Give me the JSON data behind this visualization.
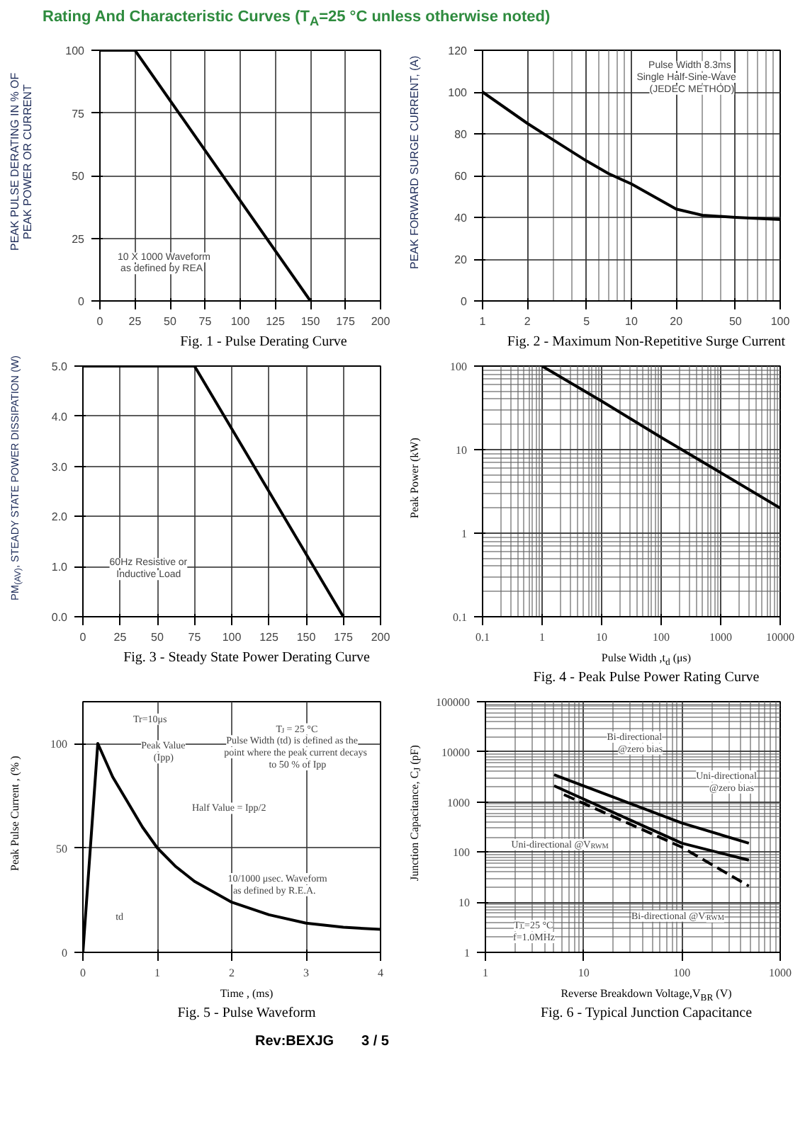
{
  "chart_data": [
    {
      "type": "line",
      "title": "Fig. 1 - Pulse Derating Curve",
      "ylabel": "PEAK PULSE DERATING IN % OF\nPEAK POWER OR CURRENT",
      "x": [
        0,
        25,
        150
      ],
      "values": [
        100,
        100,
        0
      ],
      "color": "#000000",
      "xlim": [
        0,
        200
      ],
      "xticks": [
        0,
        25,
        50,
        75,
        100,
        125,
        150,
        175,
        200
      ],
      "ylim": [
        0,
        100
      ],
      "yticks": [
        0,
        25,
        50,
        75,
        100
      ],
      "grid": true,
      "annotations": [
        "Rating And Characteristic Curves (T$_{A}$=25 °C unless otherwise noted)",
        "10 X 1000 Waveform\nas defined by REA"
      ]
    },
    {
      "type": "line",
      "title": "Fig. 2 - Maximum Non-Repetitive Surge Current",
      "ylabel": "PEAK FORWARD SURGE CURRENT, (A)",
      "x": [
        1,
        2,
        3,
        5,
        7,
        10,
        15,
        20,
        30,
        50,
        100
      ],
      "values": [
        100,
        85,
        77,
        67,
        61,
        56,
        49,
        44,
        41,
        40,
        39
      ],
      "color": "#000000",
      "xlim": [
        1,
        100
      ],
      "xticks": [
        1,
        2,
        5,
        10,
        20,
        50,
        100
      ],
      "ylim": [
        0,
        120
      ],
      "yticks": [
        0,
        20,
        40,
        60,
        80,
        100,
        120
      ],
      "log": "x",
      "grid": true,
      "annotations": [
        "Pulse Width 8.3ms\nSingle Half-Sine-Wave\n(JEDEC METHOD)"
      ]
    },
    {
      "type": "line",
      "title": "Fig. 3 - Steady State Power Derating Curve",
      "ylabel": "PM$_{(AV)}$, STEADY STATE POWER DISSIPATION (W)",
      "x": [
        0,
        75,
        175
      ],
      "values": [
        5,
        5,
        0
      ],
      "color": "#000000",
      "xlim": [
        0,
        200
      ],
      "xticks": [
        0,
        25,
        50,
        75,
        100,
        125,
        150,
        175,
        200
      ],
      "ylim": [
        0,
        5
      ],
      "yticks": [
        {
          "value": 0,
          "label": "0.0"
        },
        {
          "value": 1,
          "label": "1.0"
        },
        {
          "value": 2,
          "label": "2.0"
        },
        {
          "value": 3,
          "label": "3.0"
        },
        {
          "value": 4,
          "label": "4.0"
        },
        {
          "value": 5,
          "label": "5.0"
        }
      ],
      "grid": true,
      "annotations": [
        "60Hz Resistive or\nInductive Load"
      ]
    },
    {
      "type": "line",
      "title": "Fig. 4 - Peak Pulse Power Rating Curve",
      "xlabel": "Pulse Width ,t$_{d}$ (μs)",
      "ylabel": "Peak Power  (kW)",
      "x": [
        1,
        10,
        100,
        1000,
        10000
      ],
      "values": [
        100,
        38,
        14,
        5.3,
        2
      ],
      "color": "#000000",
      "xlim": [
        0.1,
        10000
      ],
      "xticks": [
        0.1,
        1,
        10,
        100,
        1000,
        10000
      ],
      "ylim": [
        0.1,
        100
      ],
      "yticks": [
        0.1,
        1,
        10,
        100
      ],
      "log": "xy",
      "grid": true
    },
    {
      "type": "line",
      "title": "Fig. 5 - Pulse Waveform",
      "xlabel": "Time , (ms)",
      "ylabel": "Peak Pulse Current , (% )",
      "x": [
        0,
        0.2,
        0.4,
        0.6,
        0.8,
        1.0,
        1.25,
        1.5,
        2,
        2.5,
        3,
        3.5,
        4
      ],
      "values": [
        0,
        100,
        84,
        72,
        60,
        50,
        41,
        34,
        24,
        18,
        14,
        12,
        11
      ],
      "color": "#000000",
      "xlim": [
        0,
        4
      ],
      "xticks": [
        0,
        1,
        2,
        3,
        4
      ],
      "ylim": [
        0,
        120
      ],
      "yticks": [
        0,
        50,
        100
      ],
      "grid": true,
      "annotations": [
        "Tr=10μs",
        "Peak Value\n(Ipp)",
        "T$_{J}$ = 25 °C\nPulse Width (td) is defined as the\npoint where the peak current decays\nto 50 % of Ipp",
        "Half Value = Ipp/2",
        "10/1000 μsec. Waveform\nas defined by R.E.A.",
        "td"
      ]
    },
    {
      "type": "line",
      "title": "Fig. 6 - Typical Junction Capacitance",
      "xlabel": "Reverse  Breakdown Voltage,V$_{BR}$ (V)",
      "ylabel": "Junction Capacitance, C$_{J}$ (pF)",
      "series": [
        {
          "x": [
            5,
            100,
            480
          ],
          "values": [
            3500,
            380,
            150
          ],
          "color": "#000000"
        },
        {
          "x": [
            5,
            100,
            480
          ],
          "values": [
            2100,
            150,
            69
          ],
          "color": "#000000"
        },
        {
          "x": [
            6.3,
            100,
            480
          ],
          "values": [
            1400,
            125,
            21
          ],
          "color": "#000000",
          "line_style": "dashed"
        }
      ],
      "xlim": [
        1,
        1000
      ],
      "xticks": [
        1,
        10,
        100,
        1000
      ],
      "ylim": [
        1,
        100000
      ],
      "yticks": [
        1,
        10,
        100,
        1000,
        10000,
        100000
      ],
      "log": "xy",
      "grid": true,
      "annotations": [
        "Bi-directional\n@zero bias",
        "Uni-directional\n@zero bias",
        "Uni-directional @V$_{RWM}$",
        "Bi-directional @V$_{RWM}$",
        "T$_{J}$=25 °C\nf=1.0MHz",
        "Rev:BEXJG",
        "3 / 5"
      ]
    }
  ]
}
